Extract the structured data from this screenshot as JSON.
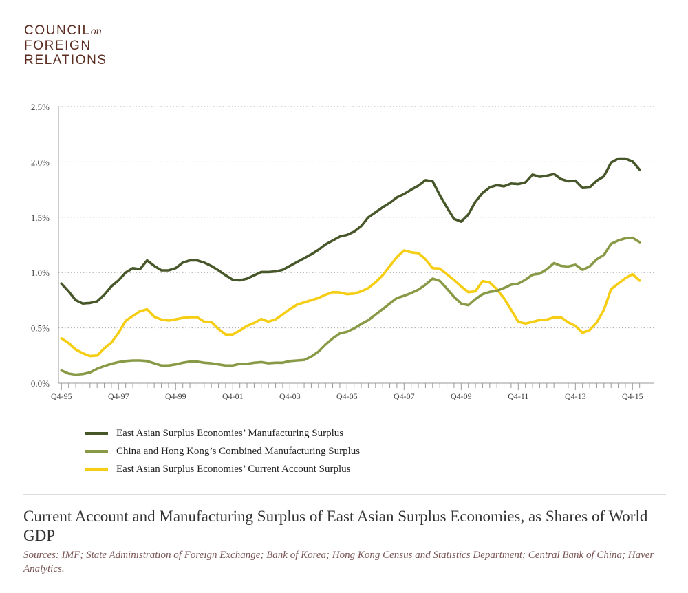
{
  "logo": {
    "line1": "COUNCIL",
    "on": "on",
    "line2": "FOREIGN",
    "line3": "RELATIONS"
  },
  "colors": {
    "dark_green": "#48572a",
    "light_green": "#899a47",
    "yellow": "#f5cd12",
    "brand": "#5b2d22"
  },
  "chart_data": {
    "type": "line",
    "title": "Current Account and Manufacturing Surplus of East Asian Surplus Economies, as Shares of World GDP",
    "sources": "Sources:  IMF; State Administration of Foreign Exchange; Bank of Korea; Hong Kong Census and Statistics Department; Central Bank of China; Haver Analytics.",
    "xlabel": "",
    "ylabel": "",
    "ylim": [
      0,
      2.5
    ],
    "y_unit": "%",
    "y_ticks": [
      "0.0%",
      "0.5%",
      "1.0%",
      "1.5%",
      "2.0%",
      "2.5%"
    ],
    "x_tick_labels": [
      "Q4-95",
      "Q4-97",
      "Q4-99",
      "Q4-01",
      "Q4-03",
      "Q4-05",
      "Q4-07",
      "Q4-09",
      "Q4-11",
      "Q4-13",
      "Q4-15"
    ],
    "grid": "horizontal dotted",
    "legend_position": "bottom",
    "x": [
      "Q4-95",
      "Q1-96",
      "Q2-96",
      "Q3-96",
      "Q4-96",
      "Q1-97",
      "Q2-97",
      "Q3-97",
      "Q4-97",
      "Q1-98",
      "Q2-98",
      "Q3-98",
      "Q4-98",
      "Q1-99",
      "Q2-99",
      "Q3-99",
      "Q4-99",
      "Q1-00",
      "Q2-00",
      "Q3-00",
      "Q4-00",
      "Q1-01",
      "Q2-01",
      "Q3-01",
      "Q4-01",
      "Q1-02",
      "Q2-02",
      "Q3-02",
      "Q4-02",
      "Q1-03",
      "Q2-03",
      "Q3-03",
      "Q4-03",
      "Q1-04",
      "Q2-04",
      "Q3-04",
      "Q4-04",
      "Q1-05",
      "Q2-05",
      "Q3-05",
      "Q4-05",
      "Q1-06",
      "Q2-06",
      "Q3-06",
      "Q4-06",
      "Q1-07",
      "Q2-07",
      "Q3-07",
      "Q4-07",
      "Q1-08",
      "Q2-08",
      "Q3-08",
      "Q4-08",
      "Q1-09",
      "Q2-09",
      "Q3-09",
      "Q4-09",
      "Q1-10",
      "Q2-10",
      "Q3-10",
      "Q4-10",
      "Q1-11",
      "Q2-11",
      "Q3-11",
      "Q4-11",
      "Q1-12",
      "Q2-12",
      "Q3-12",
      "Q4-12",
      "Q1-13",
      "Q2-13",
      "Q3-13",
      "Q4-13",
      "Q1-14",
      "Q2-14",
      "Q3-14",
      "Q4-14",
      "Q1-15",
      "Q2-15",
      "Q3-15",
      "Q4-15",
      "Q1-16"
    ],
    "series": [
      {
        "name": "East Asian Surplus Economies’ Manufacturing Surplus",
        "color": "#48572a",
        "values": [
          0.9,
          0.83,
          0.75,
          0.72,
          0.725,
          0.74,
          0.8,
          0.875,
          0.93,
          1.0,
          1.04,
          1.03,
          1.11,
          1.06,
          1.02,
          1.02,
          1.04,
          1.09,
          1.11,
          1.11,
          1.09,
          1.06,
          1.02,
          0.975,
          0.935,
          0.93,
          0.945,
          0.975,
          1.005,
          1.005,
          1.01,
          1.025,
          1.06,
          1.095,
          1.13,
          1.165,
          1.205,
          1.255,
          1.29,
          1.325,
          1.34,
          1.37,
          1.42,
          1.5,
          1.545,
          1.59,
          1.63,
          1.68,
          1.71,
          1.75,
          1.785,
          1.835,
          1.825,
          1.7,
          1.59,
          1.485,
          1.46,
          1.525,
          1.64,
          1.72,
          1.77,
          1.79,
          1.78,
          1.805,
          1.8,
          1.815,
          1.885,
          1.865,
          1.875,
          1.89,
          1.845,
          1.825,
          1.83,
          1.765,
          1.77,
          1.83,
          1.87,
          1.995,
          2.03,
          2.03,
          2.005,
          1.93
        ]
      },
      {
        "name": "China and Hong Kong’s Combined Manufacturing Surplus",
        "color": "#899a47",
        "values": [
          0.115,
          0.087,
          0.077,
          0.083,
          0.097,
          0.13,
          0.155,
          0.175,
          0.19,
          0.2,
          0.205,
          0.205,
          0.2,
          0.18,
          0.16,
          0.16,
          0.17,
          0.185,
          0.195,
          0.195,
          0.185,
          0.18,
          0.17,
          0.16,
          0.16,
          0.175,
          0.175,
          0.185,
          0.19,
          0.18,
          0.185,
          0.185,
          0.2,
          0.205,
          0.21,
          0.24,
          0.285,
          0.35,
          0.405,
          0.45,
          0.465,
          0.495,
          0.535,
          0.57,
          0.62,
          0.67,
          0.72,
          0.77,
          0.79,
          0.815,
          0.845,
          0.89,
          0.945,
          0.925,
          0.855,
          0.78,
          0.72,
          0.705,
          0.76,
          0.805,
          0.825,
          0.835,
          0.86,
          0.89,
          0.9,
          0.935,
          0.98,
          0.99,
          1.03,
          1.085,
          1.06,
          1.055,
          1.07,
          1.025,
          1.055,
          1.12,
          1.16,
          1.26,
          1.29,
          1.31,
          1.315,
          1.275
        ]
      },
      {
        "name": "East Asian Surplus Economies’ Current Account Surplus",
        "color": "#f5cd12",
        "values": [
          0.405,
          0.363,
          0.305,
          0.27,
          0.245,
          0.25,
          0.315,
          0.367,
          0.456,
          0.564,
          0.608,
          0.65,
          0.668,
          0.6,
          0.575,
          0.566,
          0.577,
          0.59,
          0.597,
          0.597,
          0.556,
          0.554,
          0.49,
          0.44,
          0.44,
          0.477,
          0.518,
          0.545,
          0.58,
          0.556,
          0.577,
          0.622,
          0.67,
          0.71,
          0.73,
          0.75,
          0.77,
          0.8,
          0.823,
          0.82,
          0.805,
          0.81,
          0.83,
          0.86,
          0.913,
          0.975,
          1.058,
          1.14,
          1.2,
          1.183,
          1.176,
          1.12,
          1.04,
          1.037,
          0.985,
          0.933,
          0.875,
          0.823,
          0.83,
          0.923,
          0.91,
          0.85,
          0.768,
          0.664,
          0.554,
          0.54,
          0.554,
          0.57,
          0.575,
          0.595,
          0.595,
          0.55,
          0.518,
          0.456,
          0.48,
          0.55,
          0.664,
          0.85,
          0.9,
          0.948,
          0.985,
          0.927
        ]
      }
    ]
  }
}
